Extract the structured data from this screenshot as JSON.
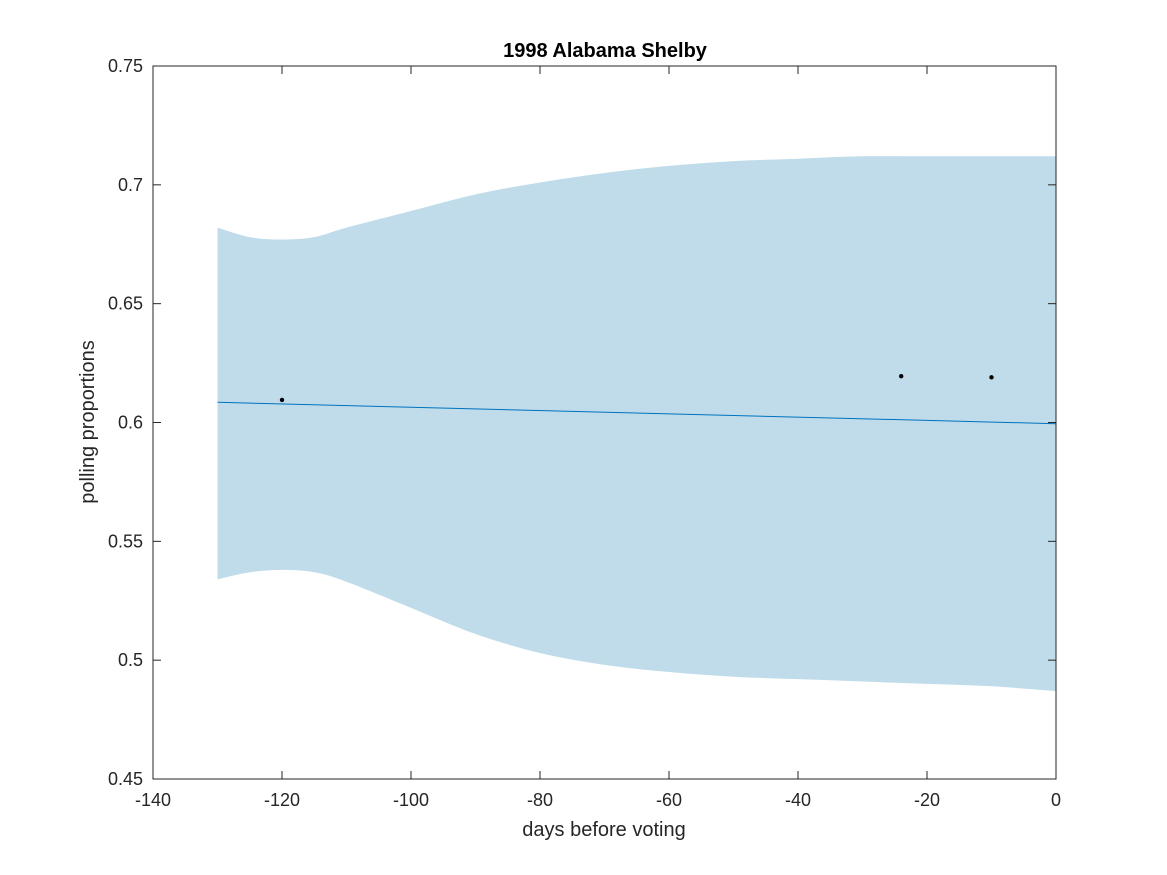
{
  "chart_data": {
    "type": "line",
    "title": "1998 Alabama Shelby",
    "xlabel": "days before voting",
    "ylabel": "polling proportions",
    "xlim": [
      -140,
      0
    ],
    "ylim": [
      0.45,
      0.75
    ],
    "xticks": [
      -140,
      -120,
      -100,
      -80,
      -60,
      -40,
      -20,
      0
    ],
    "yticks": [
      0.45,
      0.5,
      0.55,
      0.6,
      0.65,
      0.7,
      0.75
    ],
    "xtick_labels": [
      "-140",
      "-120",
      "-100",
      "-80",
      "-60",
      "-40",
      "-20",
      "0"
    ],
    "ytick_labels": [
      "0.45",
      "0.5",
      "0.55",
      "0.6",
      "0.65",
      "0.7",
      "0.75"
    ],
    "grid": false,
    "band": {
      "x": [
        -130,
        -125,
        -120,
        -115,
        -110,
        -100,
        -90,
        -80,
        -70,
        -60,
        -50,
        -40,
        -30,
        -20,
        -10,
        0
      ],
      "upper": [
        0.682,
        0.678,
        0.677,
        0.678,
        0.682,
        0.689,
        0.696,
        0.701,
        0.705,
        0.708,
        0.71,
        0.711,
        0.712,
        0.712,
        0.712,
        0.712
      ],
      "lower": [
        0.534,
        0.537,
        0.538,
        0.537,
        0.533,
        0.522,
        0.511,
        0.503,
        0.498,
        0.495,
        0.493,
        0.492,
        0.491,
        0.49,
        0.489,
        0.487
      ],
      "color": "#c0dceb"
    },
    "series": [
      {
        "x": [
          -130,
          0
        ],
        "y": [
          0.6085,
          0.5995
        ],
        "color": "#0072bd"
      }
    ],
    "points": {
      "x": [
        -120,
        -24,
        -10
      ],
      "y": [
        0.6095,
        0.6195,
        0.619
      ],
      "color": "#000000"
    },
    "colors": {
      "axis": "#262626",
      "background": "#ffffff"
    }
  }
}
